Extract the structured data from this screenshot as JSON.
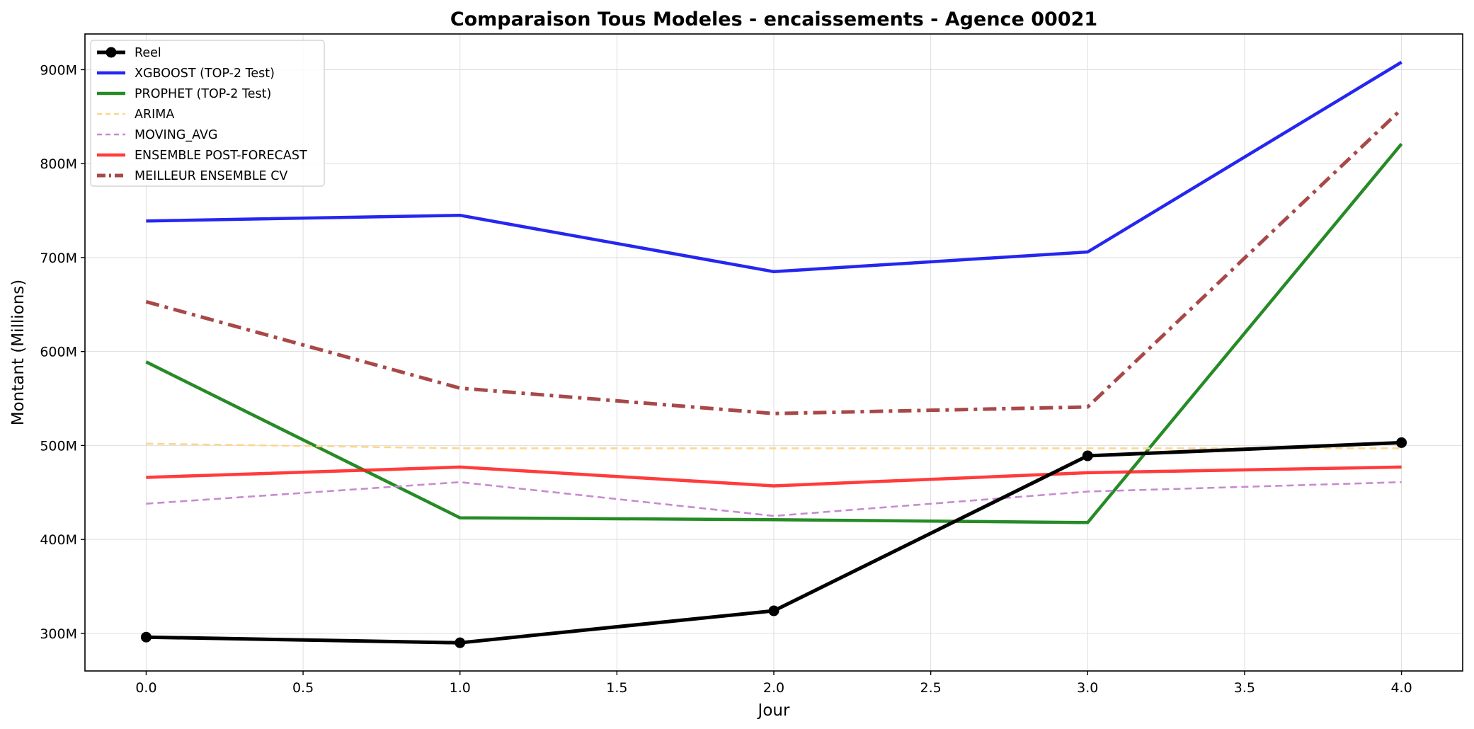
{
  "chart_data": {
    "type": "line",
    "title": "Comparaison Tous Modeles - encaissements - Agence 00021",
    "xlabel": "Jour",
    "ylabel": "Montant (Millions)",
    "xlim": [
      -0.195,
      4.195
    ],
    "ylim": [
      260,
      938
    ],
    "x_ticks": [
      0.0,
      0.5,
      1.0,
      1.5,
      2.0,
      2.5,
      3.0,
      3.5,
      4.0
    ],
    "x_tick_labels": [
      "0.0",
      "0.5",
      "1.0",
      "1.5",
      "2.0",
      "2.5",
      "3.0",
      "3.5",
      "4.0"
    ],
    "y_ticks": [
      300,
      400,
      500,
      600,
      700,
      800,
      900
    ],
    "y_tick_labels": [
      "300M",
      "400M",
      "500M",
      "600M",
      "700M",
      "800M",
      "900M"
    ],
    "grid": true,
    "legend_position": "top-left",
    "x": [
      0,
      1,
      2,
      3,
      4
    ],
    "series": [
      {
        "name": "XGBOOST (TOP-2 Test)",
        "values": [
          739,
          745,
          685,
          706,
          908
        ],
        "color": "#0000ee",
        "style": "solid"
      },
      {
        "name": "PROPHET (TOP-2 Test)",
        "values": [
          589,
          423,
          421,
          418,
          821
        ],
        "color": "#007700",
        "style": "solid"
      },
      {
        "name": "ARIMA",
        "values": [
          502,
          497,
          497,
          497,
          497
        ],
        "color": "#fdd68f",
        "style": "dashed"
      },
      {
        "name": "MOVING_AVG",
        "values": [
          438,
          461,
          425,
          451,
          461
        ],
        "color": "#c88ad0",
        "style": "dashed"
      },
      {
        "name": "ENSEMBLE POST-FORECAST",
        "values": [
          466,
          477,
          457,
          471,
          477
        ],
        "color": "#ff1a1a",
        "style": "solid"
      },
      {
        "name": "MEILLEUR ENSEMBLE CV",
        "values": [
          653,
          561,
          534,
          541,
          858
        ],
        "color": "#a84848",
        "style": "dashdot"
      },
      {
        "name": "Reel",
        "values": [
          296,
          290,
          324,
          489,
          503
        ],
        "color": "#000000",
        "style": "solid-marker"
      }
    ],
    "legend_order": [
      "Reel",
      "XGBOOST (TOP-2 Test)",
      "PROPHET (TOP-2 Test)",
      "ARIMA",
      "MOVING_AVG",
      "ENSEMBLE POST-FORECAST",
      "MEILLEUR ENSEMBLE CV"
    ]
  }
}
